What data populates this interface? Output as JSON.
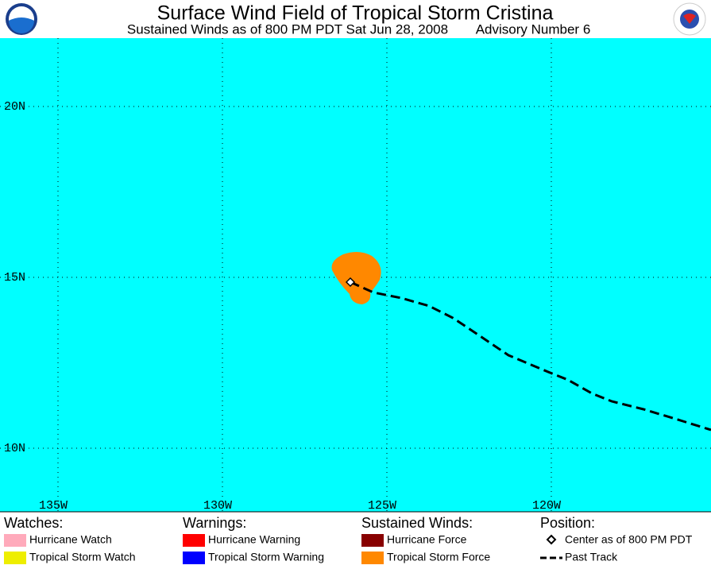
{
  "header": {
    "title": "Surface Wind Field of Tropical Storm Cristina",
    "subtitle": "Sustained Winds as of 800 PM PDT Sat Jun 28, 2008",
    "advisory": "Advisory Number 6"
  },
  "map": {
    "longitudes": [
      "135W",
      "130W",
      "125W",
      "120W"
    ],
    "latitudes": [
      "20N",
      "15N",
      "10N"
    ]
  },
  "legend": {
    "watches": {
      "title": "Watches:",
      "items": [
        "Hurricane Watch",
        "Tropical Storm Watch"
      ]
    },
    "warnings": {
      "title": "Warnings:",
      "items": [
        "Hurricane Warning",
        "Tropical Storm Warning"
      ]
    },
    "winds": {
      "title": "Sustained Winds:",
      "items": [
        "Hurricane Force",
        "Tropical Storm Force"
      ]
    },
    "position": {
      "title": "Position:",
      "items": [
        "Center as of 800 PM PDT",
        "Past Track"
      ]
    }
  }
}
